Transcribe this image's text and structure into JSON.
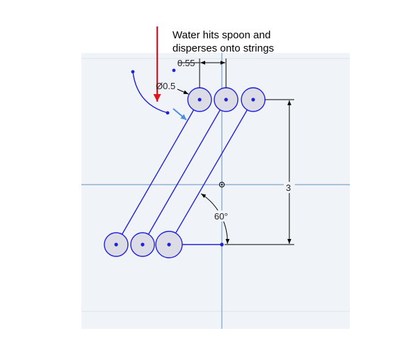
{
  "annotation": {
    "line1": "Water hits spoon and",
    "line2": "disperses onto strings"
  },
  "dimensions": {
    "spacing": "0.55",
    "diameter": "Ø0.5",
    "height": "3",
    "angle": "60°"
  },
  "colors": {
    "canvas": "#f0f4f8",
    "grid": "#dde4ec",
    "axis": "#8fb0cf",
    "sketch": "#2020dd",
    "circle_fill": "#dcdce6",
    "water_arrow": "#e0141e",
    "spoon_arrow": "#4a8fe0",
    "dimension": "#000000"
  }
}
